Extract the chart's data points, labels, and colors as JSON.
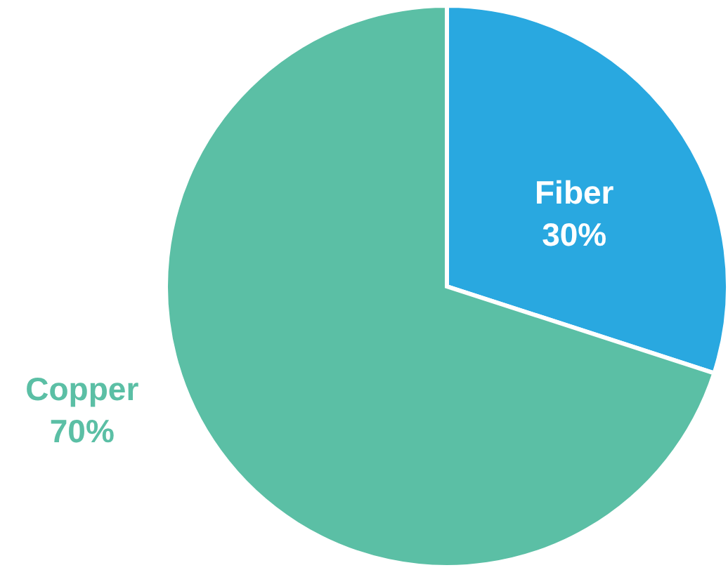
{
  "chart_data": {
    "type": "pie",
    "categories": [
      "Fiber",
      "Copper"
    ],
    "values": [
      30,
      70
    ],
    "value_labels": [
      "30%",
      "70%"
    ],
    "colors": [
      "#29a8e0",
      "#5bbfa5"
    ]
  }
}
